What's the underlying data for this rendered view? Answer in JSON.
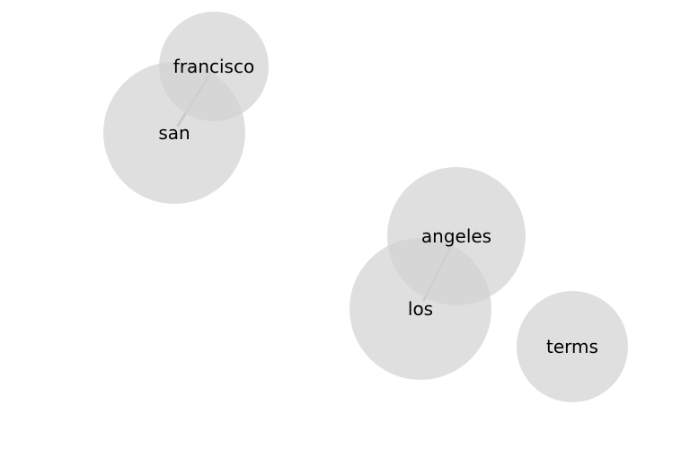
{
  "colors": {
    "node_fill": "#d3d3d3",
    "edge": "#a8a8a8",
    "background": "#ffffff"
  },
  "nodes": [
    {
      "id": "francisco",
      "label": "francisco"
    },
    {
      "id": "san",
      "label": "san"
    },
    {
      "id": "angeles",
      "label": "angeles"
    },
    {
      "id": "los",
      "label": "los"
    },
    {
      "id": "terms",
      "label": "terms"
    }
  ],
  "edges": [
    {
      "from": "san",
      "to": "francisco"
    },
    {
      "from": "los",
      "to": "angeles"
    }
  ]
}
